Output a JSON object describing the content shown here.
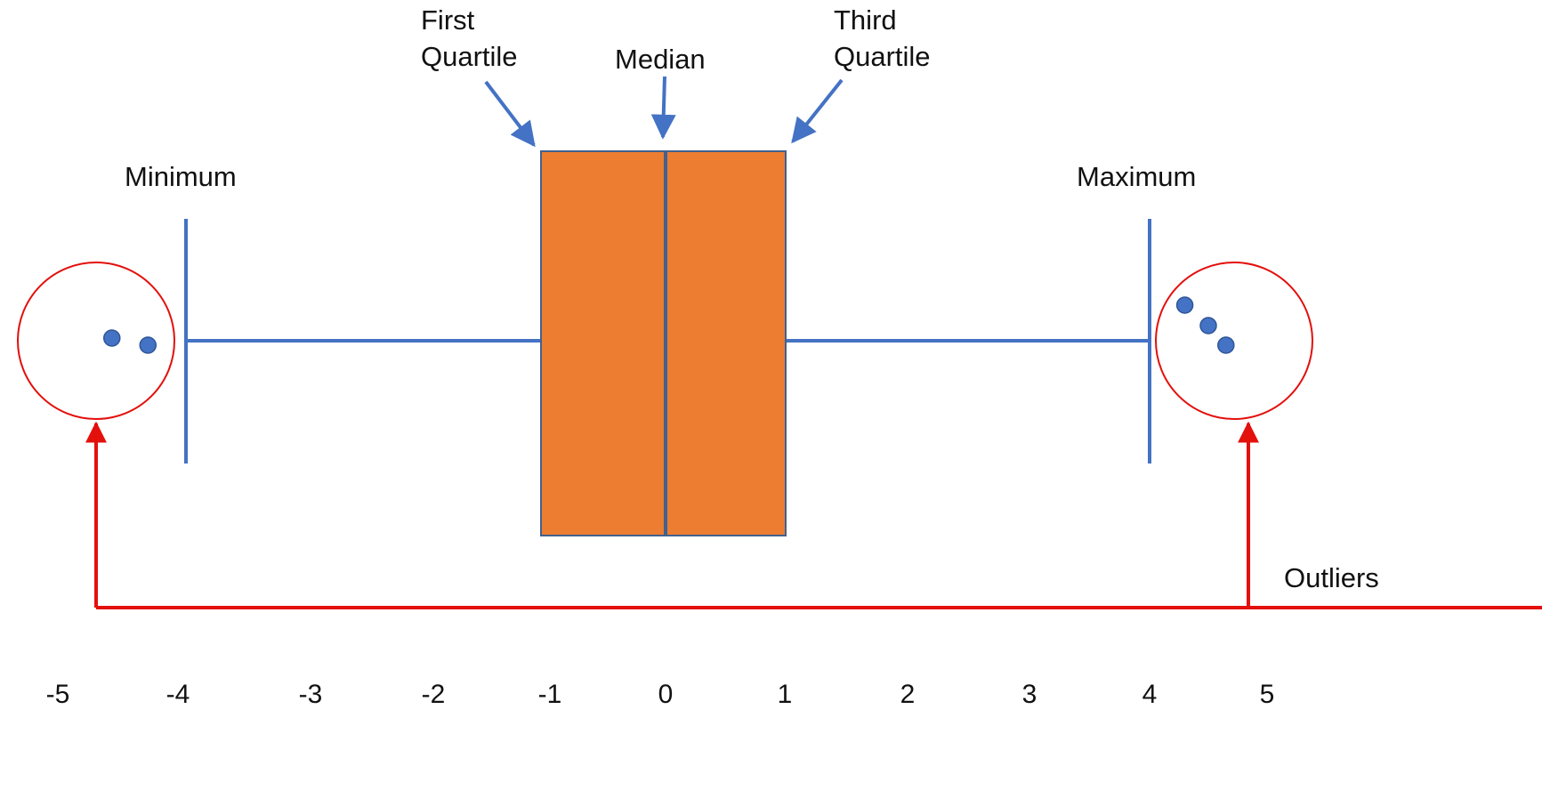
{
  "colors": {
    "box_fill": "#ED7D31",
    "box_stroke": "#41618F",
    "whisker": "#4472C4",
    "point": "#4472C4",
    "outlier_highlight": "#E3100C",
    "text": "#111111"
  },
  "labels": {
    "first_quartile": [
      "First",
      "Quartile"
    ],
    "median": "Median",
    "third_quartile": [
      "Third",
      "Quartile"
    ],
    "minimum": "Minimum",
    "maximum": "Maximum",
    "outliers": "Outliers"
  },
  "chart_data": {
    "type": "boxplot",
    "axis_ticks": [
      -5,
      -4,
      -3,
      -2,
      -1,
      0,
      1,
      2,
      3,
      4,
      5
    ],
    "xlim": [
      -5,
      5
    ],
    "minimum": -4,
    "first_quartile": -1,
    "median": 0,
    "third_quartile": 1,
    "maximum": 4,
    "outliers_low": [
      -4.55,
      -4.25
    ],
    "outliers_high": [
      4.3,
      4.5,
      4.65
    ],
    "grid": false
  }
}
